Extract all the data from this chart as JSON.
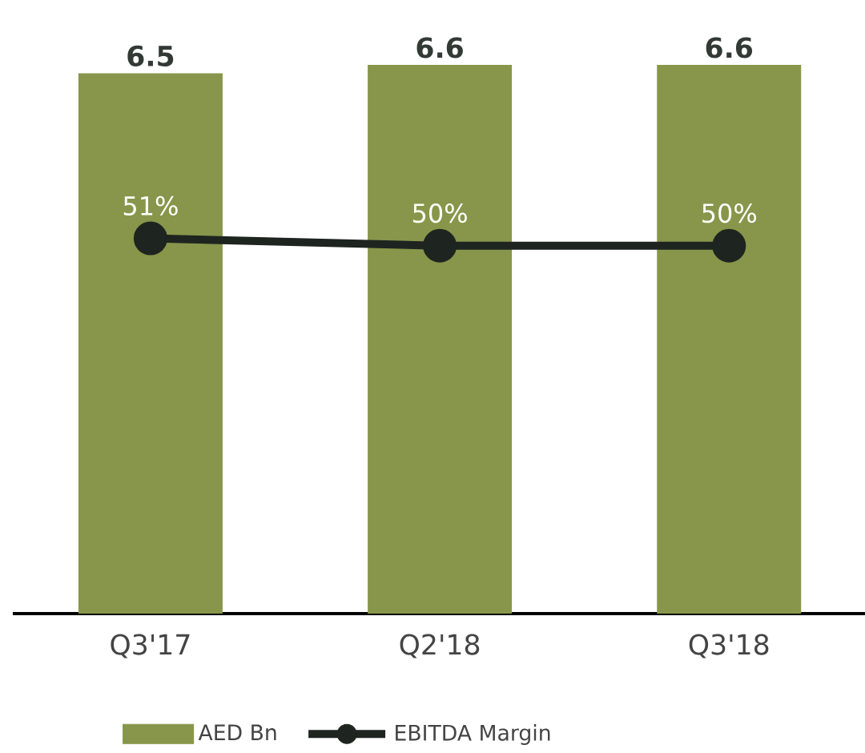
{
  "chart_data": {
    "type": "bar",
    "categories": [
      "Q3'17",
      "Q2'18",
      "Q3'18"
    ],
    "series": [
      {
        "name": "AED Bn",
        "color": "#87964a",
        "values": [
          6.5,
          6.6,
          6.6
        ],
        "value_labels": [
          "6.5",
          "6.6",
          "6.6"
        ]
      },
      {
        "name": "EBITDA Margin",
        "type": "line",
        "axis": "y2",
        "color": "#1e2420",
        "values": [
          51,
          50,
          50
        ],
        "value_labels": [
          "51%",
          "50%",
          "50%"
        ]
      }
    ],
    "legend": "bottom",
    "marker": "circle",
    "line_style": "solid"
  }
}
